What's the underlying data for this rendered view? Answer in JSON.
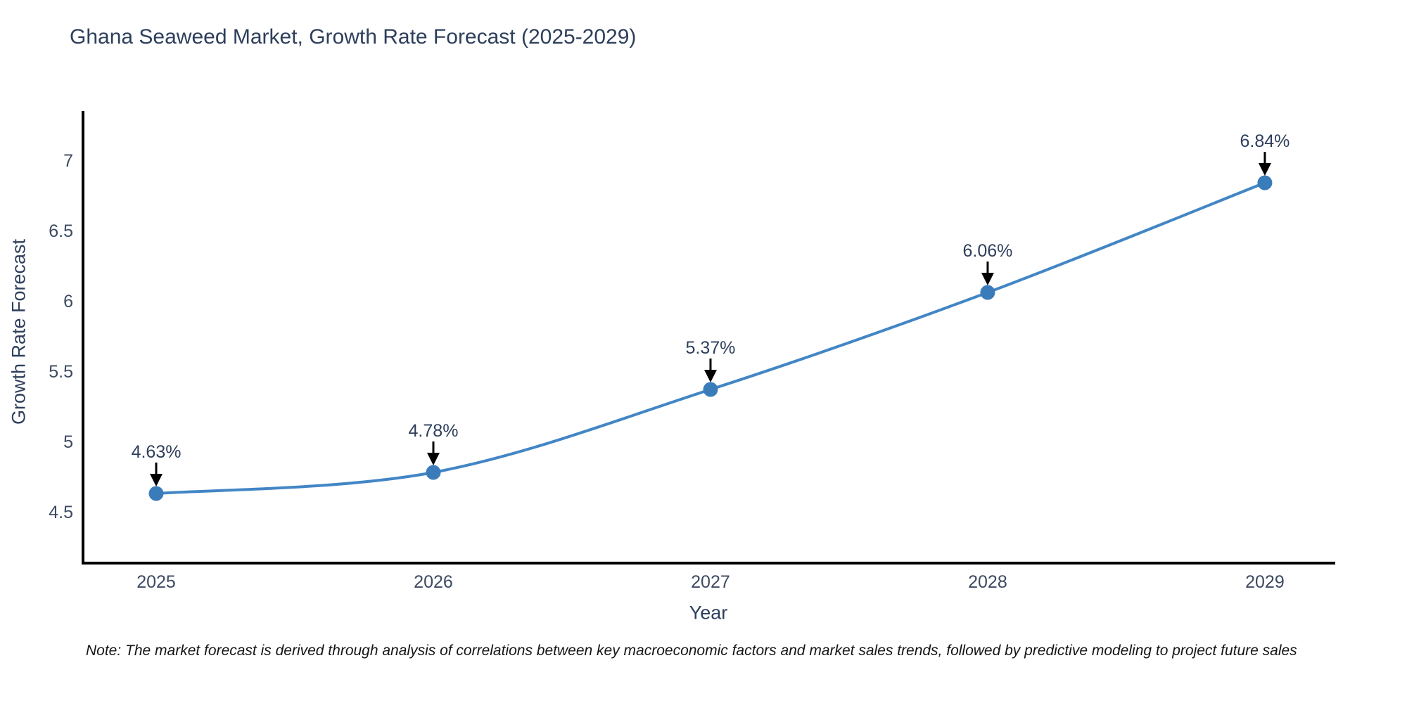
{
  "title": "Ghana Seaweed Market, Growth Rate Forecast (2025-2029)",
  "note": "Note: The market forecast is derived through analysis of correlations between key macroeconomic factors and market sales trends, followed by predictive modeling to project future sales",
  "chart_data": {
    "type": "line",
    "title": "Ghana Seaweed Market, Growth Rate Forecast (2025-2029)",
    "xlabel": "Year",
    "ylabel": "Growth Rate Forecast",
    "x": [
      2025,
      2026,
      2027,
      2028,
      2029
    ],
    "values": [
      4.63,
      4.78,
      5.37,
      6.06,
      6.84
    ],
    "point_labels": [
      "4.63%",
      "4.78%",
      "5.37%",
      "6.06%",
      "6.84%"
    ],
    "xticks": [
      "2025",
      "2026",
      "2027",
      "2028",
      "2029"
    ],
    "yticks": [
      4.5,
      5,
      5.5,
      6,
      6.5,
      7
    ],
    "ytick_labels": [
      "4.5",
      "5",
      "5.5",
      "6",
      "6.5",
      "7"
    ],
    "xlim": [
      2024.736,
      2029.254
    ],
    "ylim": [
      4.135,
      7.35
    ],
    "grid": false,
    "legend": false,
    "colors": {
      "line": "#4286c5",
      "marker": "#3a7cba",
      "axis": "#000000",
      "tick_label": "#3d4a61",
      "annotation": "#2e3f5c",
      "arrow": "#000000"
    }
  }
}
